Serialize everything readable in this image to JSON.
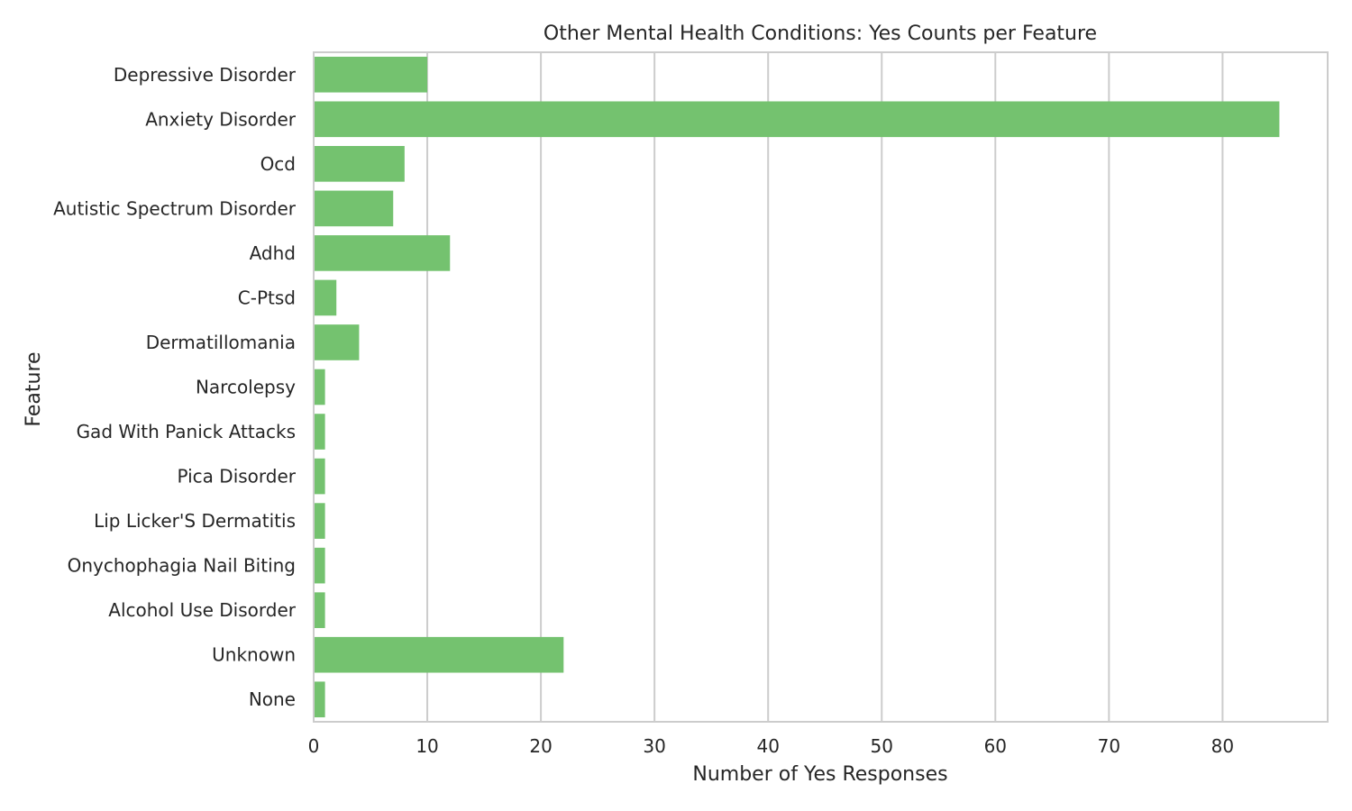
{
  "chart_data": {
    "type": "bar",
    "orientation": "horizontal",
    "title": "Other Mental Health Conditions: Yes Counts per Feature",
    "xlabel": "Number of Yes Responses",
    "ylabel": "Feature",
    "categories": [
      "Depressive Disorder",
      "Anxiety Disorder",
      "Ocd",
      "Autistic Spectrum Disorder",
      "Adhd",
      "C-Ptsd",
      "Dermatillomania",
      "Narcolepsy",
      "Gad With Panick Attacks",
      "Pica Disorder",
      "Lip Licker'S Dermatitis",
      "Onychophagia Nail Biting",
      "Alcohol Use Disorder",
      "Unknown",
      "None"
    ],
    "values": [
      10,
      85,
      8,
      7,
      12,
      2,
      4,
      1,
      1,
      1,
      1,
      1,
      1,
      22,
      1
    ],
    "xlim": [
      0,
      89.25
    ],
    "xticks": [
      0,
      10,
      20,
      30,
      40,
      50,
      60,
      70,
      80
    ],
    "grid": "x",
    "bar_color": "#74c26f",
    "grid_color": "#cccccc",
    "spine_color": "#cccccc"
  }
}
